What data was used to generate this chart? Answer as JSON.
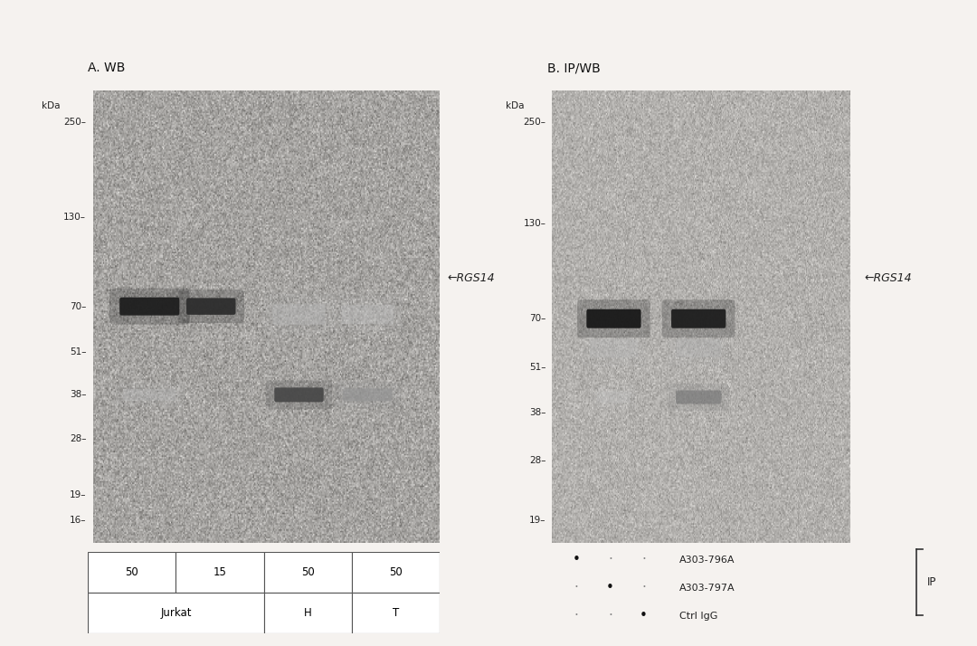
{
  "white_bg": "#f5f2ef",
  "panel_bg": "#ccc8c2",
  "panel_A_title": "A. WB",
  "panel_B_title": "B. IP/WB",
  "kda_label": "kDa",
  "mw_markers_A": [
    250,
    130,
    70,
    51,
    38,
    28,
    19,
    16
  ],
  "mw_markers_B": [
    250,
    130,
    70,
    51,
    38,
    28,
    19
  ],
  "rgs14_label": "←RGS14",
  "lane_labels_top_A": [
    "50",
    "15",
    "50",
    "50"
  ],
  "lane_groups_A": [
    "Jurkat",
    "H",
    "T"
  ],
  "ip_labels": [
    "A303-796A",
    "A303-797A",
    "Ctrl IgG"
  ],
  "ip_row1": [
    "•",
    "·",
    "·"
  ],
  "ip_row2": [
    "·",
    "•",
    "·"
  ],
  "ip_row3": [
    "·",
    "·",
    "•"
  ],
  "ip_bracket_label": "IP"
}
